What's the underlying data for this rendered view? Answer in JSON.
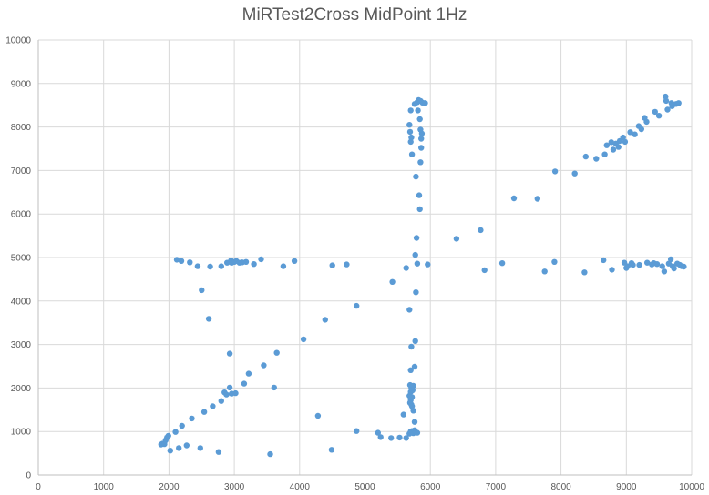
{
  "chart_data": {
    "type": "scatter",
    "title": "MiRTest2Cross MidPoint 1Hz",
    "xlabel": "",
    "ylabel": "",
    "xlim": [
      0,
      10000
    ],
    "ylim": [
      0,
      10000
    ],
    "x_ticks": [
      "0",
      "1000",
      "2000",
      "3000",
      "4000",
      "5000",
      "6000",
      "7000",
      "8000",
      "9000",
      "10000"
    ],
    "y_ticks": [
      "0",
      "1000",
      "2000",
      "3000",
      "4000",
      "5000",
      "6000",
      "7000",
      "8000",
      "9000",
      "10000"
    ],
    "grid": true,
    "marker_color": "#5b9bd5",
    "series": [
      {
        "points": [
          [
            1880,
            700
          ],
          [
            1900,
            720
          ],
          [
            1930,
            710
          ],
          [
            1950,
            800
          ],
          [
            1970,
            860
          ],
          [
            1990,
            900
          ],
          [
            2020,
            560
          ],
          [
            2100,
            990
          ],
          [
            2150,
            620
          ],
          [
            2200,
            1130
          ],
          [
            2270,
            680
          ],
          [
            2350,
            1300
          ],
          [
            2480,
            620
          ],
          [
            2540,
            1450
          ],
          [
            2670,
            1580
          ],
          [
            2760,
            530
          ],
          [
            2800,
            1700
          ],
          [
            2850,
            1900
          ],
          [
            2880,
            1850
          ],
          [
            2930,
            2010
          ],
          [
            2960,
            1870
          ],
          [
            3020,
            1880
          ],
          [
            3150,
            2100
          ],
          [
            3220,
            2330
          ],
          [
            3450,
            2520
          ],
          [
            3550,
            480
          ],
          [
            3610,
            2010
          ],
          [
            3650,
            2810
          ],
          [
            4060,
            3120
          ],
          [
            4280,
            1360
          ],
          [
            4390,
            3570
          ],
          [
            4490,
            580
          ],
          [
            4870,
            3890
          ],
          [
            4870,
            1010
          ],
          [
            5200,
            970
          ],
          [
            5240,
            870
          ],
          [
            5400,
            850
          ],
          [
            5530,
            860
          ],
          [
            5590,
            1390
          ],
          [
            5630,
            850
          ],
          [
            5680,
            950
          ],
          [
            5700,
            1000
          ],
          [
            5720,
            1010
          ],
          [
            5740,
            960
          ],
          [
            5760,
            1030
          ],
          [
            5780,
            980
          ],
          [
            5800,
            970
          ],
          [
            5760,
            1220
          ],
          [
            5740,
            1480
          ],
          [
            5700,
            1720
          ],
          [
            5720,
            1790
          ],
          [
            5680,
            1820
          ],
          [
            5700,
            1910
          ],
          [
            5730,
            1950
          ],
          [
            5710,
            2000
          ],
          [
            5690,
            2070
          ],
          [
            5740,
            2050
          ],
          [
            5690,
            1660
          ],
          [
            5710,
            1620
          ],
          [
            5720,
            1580
          ],
          [
            5700,
            2410
          ],
          [
            5760,
            2490
          ],
          [
            5710,
            2950
          ],
          [
            5770,
            3080
          ],
          [
            5680,
            3800
          ],
          [
            5780,
            4200
          ],
          [
            5420,
            4440
          ],
          [
            5630,
            4760
          ],
          [
            5800,
            4860
          ],
          [
            5770,
            5060
          ],
          [
            5790,
            5450
          ],
          [
            5840,
            6110
          ],
          [
            5830,
            6430
          ],
          [
            5780,
            6860
          ],
          [
            5850,
            7190
          ],
          [
            5860,
            7520
          ],
          [
            5860,
            7730
          ],
          [
            5870,
            7850
          ],
          [
            5850,
            7940
          ],
          [
            5840,
            8180
          ],
          [
            5810,
            8380
          ],
          [
            5760,
            8530
          ],
          [
            5800,
            8570
          ],
          [
            5820,
            8620
          ],
          [
            5850,
            8600
          ],
          [
            5880,
            8560
          ],
          [
            5920,
            8550
          ],
          [
            5700,
            8380
          ],
          [
            5680,
            8050
          ],
          [
            5690,
            7890
          ],
          [
            5710,
            7760
          ],
          [
            5700,
            7660
          ],
          [
            5720,
            7370
          ],
          [
            5960,
            4840
          ],
          [
            6400,
            5430
          ],
          [
            6770,
            5630
          ],
          [
            6830,
            4710
          ],
          [
            7100,
            4870
          ],
          [
            7280,
            6360
          ],
          [
            7640,
            6350
          ],
          [
            7750,
            4680
          ],
          [
            7900,
            4900
          ],
          [
            7910,
            6980
          ],
          [
            8210,
            6930
          ],
          [
            8360,
            4660
          ],
          [
            8380,
            7320
          ],
          [
            8540,
            7270
          ],
          [
            8650,
            4940
          ],
          [
            8670,
            7370
          ],
          [
            8700,
            7580
          ],
          [
            8770,
            7650
          ],
          [
            8780,
            4720
          ],
          [
            8800,
            7480
          ],
          [
            8840,
            7620
          ],
          [
            8880,
            7540
          ],
          [
            8900,
            7680
          ],
          [
            8950,
            7760
          ],
          [
            8970,
            4880
          ],
          [
            8980,
            7660
          ],
          [
            9000,
            4760
          ],
          [
            9020,
            4800
          ],
          [
            9060,
            7880
          ],
          [
            9080,
            4870
          ],
          [
            9100,
            4830
          ],
          [
            9130,
            7830
          ],
          [
            9190,
            8020
          ],
          [
            9200,
            4830
          ],
          [
            9230,
            7950
          ],
          [
            9280,
            8210
          ],
          [
            9310,
            8120
          ],
          [
            9320,
            4880
          ],
          [
            9390,
            4840
          ],
          [
            9420,
            4870
          ],
          [
            9440,
            8350
          ],
          [
            9470,
            4850
          ],
          [
            9500,
            8260
          ],
          [
            9550,
            4800
          ],
          [
            9580,
            4680
          ],
          [
            9600,
            8700
          ],
          [
            9610,
            8600
          ],
          [
            9630,
            8400
          ],
          [
            9650,
            4860
          ],
          [
            9680,
            4960
          ],
          [
            9690,
            8550
          ],
          [
            9700,
            8480
          ],
          [
            9710,
            4800
          ],
          [
            9730,
            4750
          ],
          [
            9760,
            8530
          ],
          [
            9780,
            4860
          ],
          [
            9800,
            8550
          ],
          [
            9820,
            4830
          ],
          [
            9850,
            4800
          ],
          [
            9880,
            4790
          ],
          [
            2120,
            4950
          ],
          [
            2190,
            4920
          ],
          [
            2320,
            4890
          ],
          [
            2440,
            4800
          ],
          [
            2500,
            4250
          ],
          [
            2610,
            3590
          ],
          [
            2630,
            4790
          ],
          [
            2800,
            4800
          ],
          [
            2890,
            4880
          ],
          [
            2930,
            2790
          ],
          [
            2950,
            4930
          ],
          [
            2960,
            4880
          ],
          [
            3000,
            4900
          ],
          [
            3030,
            4920
          ],
          [
            3080,
            4880
          ],
          [
            3120,
            4890
          ],
          [
            3180,
            4900
          ],
          [
            3300,
            4850
          ],
          [
            3410,
            4960
          ],
          [
            3750,
            4800
          ],
          [
            3920,
            4920
          ],
          [
            4500,
            4820
          ],
          [
            4720,
            4840
          ]
        ]
      }
    ]
  }
}
